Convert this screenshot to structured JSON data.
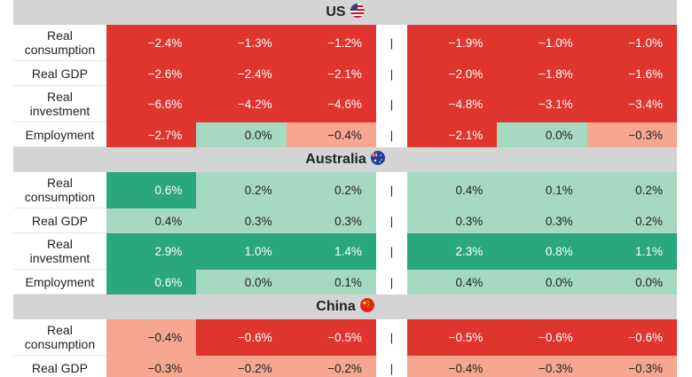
{
  "separator": "|",
  "sections": [
    {
      "title": "US",
      "rows": [
        {
          "label": "Real consumption",
          "cells": [
            "−2.4%",
            "−1.3%",
            "−1.2%",
            "−1.9%",
            "−1.0%",
            "−1.0%"
          ],
          "colors": [
            "#e0352f",
            "#e0352f",
            "#e0352f",
            "#e0352f",
            "#e0352f",
            "#e0352f"
          ]
        },
        {
          "label": "Real GDP",
          "cells": [
            "−2.6%",
            "−2.4%",
            "−2.1%",
            "−2.0%",
            "−1.8%",
            "−1.6%"
          ],
          "colors": [
            "#e0352f",
            "#e0352f",
            "#e0352f",
            "#e0352f",
            "#e0352f",
            "#e0352f"
          ]
        },
        {
          "label": "Real investment",
          "cells": [
            "−6.6%",
            "−4.2%",
            "−4.6%",
            "−4.8%",
            "−3.1%",
            "−3.4%"
          ],
          "colors": [
            "#e0352f",
            "#e0352f",
            "#e0352f",
            "#e0352f",
            "#e0352f",
            "#e0352f"
          ]
        },
        {
          "label": "Employment",
          "cells": [
            "−2.7%",
            "0.0%",
            "−0.4%",
            "−2.1%",
            "0.0%",
            "−0.3%"
          ],
          "colors": [
            "#e0352f",
            "#a5d9c1",
            "#f7a690",
            "#e0352f",
            "#a5d9c1",
            "#f7a690"
          ]
        }
      ]
    },
    {
      "title": "Australia",
      "rows": [
        {
          "label": "Real consumption",
          "cells": [
            "0.6%",
            "0.2%",
            "0.2%",
            "0.4%",
            "0.1%",
            "0.2%"
          ],
          "colors": [
            "#2ba77f",
            "#a5d9c1",
            "#a5d9c1",
            "#a5d9c1",
            "#a5d9c1",
            "#a5d9c1"
          ]
        },
        {
          "label": "Real GDP",
          "cells": [
            "0.4%",
            "0.3%",
            "0.3%",
            "0.3%",
            "0.3%",
            "0.2%"
          ],
          "colors": [
            "#a5d9c1",
            "#a5d9c1",
            "#a5d9c1",
            "#a5d9c1",
            "#a5d9c1",
            "#a5d9c1"
          ]
        },
        {
          "label": "Real investment",
          "cells": [
            "2.9%",
            "1.0%",
            "1.4%",
            "2.3%",
            "0.8%",
            "1.1%"
          ],
          "colors": [
            "#2ba77f",
            "#2ba77f",
            "#2ba77f",
            "#2ba77f",
            "#2ba77f",
            "#2ba77f"
          ]
        },
        {
          "label": "Employment",
          "cells": [
            "0.6%",
            "0.0%",
            "0.1%",
            "0.4%",
            "0.0%",
            "0.0%"
          ],
          "colors": [
            "#2ba77f",
            "#a5d9c1",
            "#a5d9c1",
            "#a5d9c1",
            "#a5d9c1",
            "#a5d9c1"
          ]
        }
      ]
    },
    {
      "title": "China",
      "rows": [
        {
          "label": "Real consumption",
          "cells": [
            "−0.4%",
            "−0.6%",
            "−0.5%",
            "−0.5%",
            "−0.6%",
            "−0.6%"
          ],
          "colors": [
            "#f7a690",
            "#e0352f",
            "#e0352f",
            "#e0352f",
            "#e0352f",
            "#e0352f"
          ]
        },
        {
          "label": "Real GDP",
          "cells": [
            "−0.3%",
            "−0.2%",
            "−0.2%",
            "−0.4%",
            "−0.3%",
            "−0.3%"
          ],
          "colors": [
            "#f7a690",
            "#f7a690",
            "#f7a690",
            "#f7a690",
            "#f7a690",
            "#f7a690"
          ]
        }
      ]
    }
  ]
}
